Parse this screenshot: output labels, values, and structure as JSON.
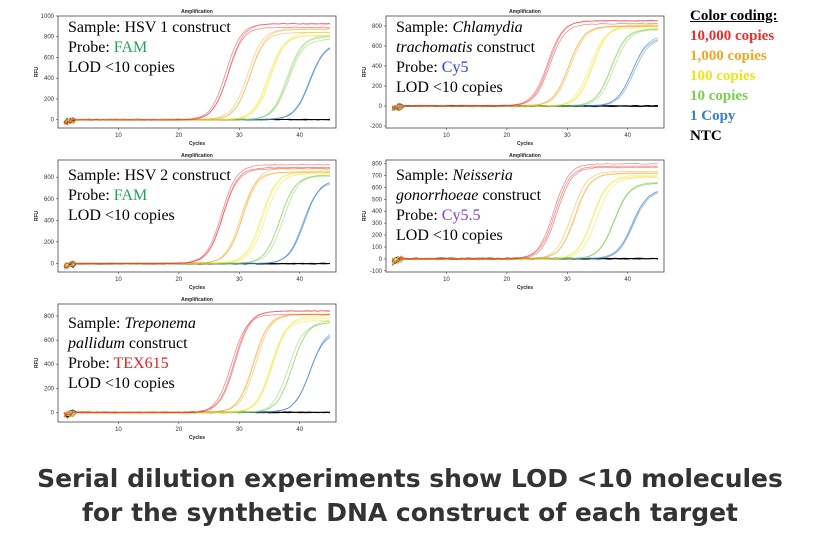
{
  "colors": {
    "c10000": "#ef2b2b",
    "c1000": "#f5a623",
    "c100": "#f2e21a",
    "c10": "#7ccf4a",
    "c1": "#3a7ec8",
    "ntc": "#000000"
  },
  "legend": {
    "title": "Color coding:",
    "items": [
      {
        "label": "10,000 copies",
        "color": "#ef2b2b"
      },
      {
        "label": "1,000 copies",
        "color": "#f5a623"
      },
      {
        "label": "100 copies",
        "color": "#f2e21a"
      },
      {
        "label": "10 copies",
        "color": "#7ccf4a"
      },
      {
        "label": "1 Copy",
        "color": "#3a7ec8"
      },
      {
        "label": "NTC",
        "color": "#000000"
      }
    ]
  },
  "caption": {
    "line1": "Serial dilution experiments show LOD <10 molecules",
    "line2": "for the synthetic DNA construct of each target"
  },
  "chart_data": [
    {
      "type": "line",
      "title": "Amplification",
      "xlabel": "Cycles",
      "ylabel": "RFU",
      "xlim": [
        0,
        46
      ],
      "ylim": [
        -80,
        1000
      ],
      "xticks": [
        "10",
        "20",
        "30",
        "40"
      ],
      "yticks": [
        "0",
        "200",
        "400",
        "600",
        "800",
        "1000"
      ],
      "annotation": {
        "sample_prefix": "Sample: ",
        "sample_name": "HSV 1",
        "sample_suffix": " construct",
        "probe_prefix": "Probe: ",
        "probe": "FAM",
        "probe_color": "#22a55a",
        "lod": "LOD <10 copies"
      },
      "series": [
        {
          "color": "#ef2b2b",
          "ct": 28,
          "plateau": 930
        },
        {
          "color": "#f5a623",
          "ct": 31.5,
          "plateau": 880
        },
        {
          "color": "#f2e21a",
          "ct": 35,
          "plateau": 860
        },
        {
          "color": "#7ccf4a",
          "ct": 38,
          "plateau": 820
        },
        {
          "color": "#3a7ec8",
          "ct": 41.5,
          "plateau": 760
        },
        {
          "color": "#000000",
          "ct": null,
          "plateau": 0
        }
      ]
    },
    {
      "type": "line",
      "title": "Amplification",
      "xlabel": "Cycles",
      "ylabel": "RFU",
      "xlim": [
        0,
        46
      ],
      "ylim": [
        -220,
        900
      ],
      "xticks": [
        "10",
        "20",
        "30",
        "40"
      ],
      "yticks": [
        "-200",
        "0",
        "200",
        "400",
        "600",
        "800"
      ],
      "annotation": {
        "sample_prefix": "Sample: ",
        "sample_name": "Chlamydia",
        "sample_name2": "trachomatis",
        "sample_suffix": " construct",
        "probe_prefix": "Probe: ",
        "probe": "Cy5",
        "probe_color": "#2b3fe0",
        "lod": "LOD <10 copies"
      },
      "series": [
        {
          "color": "#ef2b2b",
          "ct": 27,
          "plateau": 860
        },
        {
          "color": "#f5a623",
          "ct": 30.5,
          "plateau": 840
        },
        {
          "color": "#f2e21a",
          "ct": 34,
          "plateau": 820
        },
        {
          "color": "#7ccf4a",
          "ct": 37.5,
          "plateau": 780
        },
        {
          "color": "#3a7ec8",
          "ct": 41,
          "plateau": 720
        },
        {
          "color": "#000000",
          "ct": null,
          "plateau": 0
        }
      ]
    },
    {
      "type": "line",
      "title": "Amplification",
      "xlabel": "Cycles",
      "ylabel": "RFU",
      "xlim": [
        0,
        46
      ],
      "ylim": [
        -80,
        960
      ],
      "xticks": [
        "10",
        "20",
        "30",
        "40"
      ],
      "yticks": [
        "0",
        "200",
        "400",
        "600",
        "800"
      ],
      "annotation": {
        "sample_prefix": "Sample: ",
        "sample_name": "HSV 2",
        "sample_suffix": " construct",
        "probe_prefix": "Probe: ",
        "probe": "FAM",
        "probe_color": "#22a55a",
        "lod": "LOD <10 copies"
      },
      "series": [
        {
          "color": "#ef2b2b",
          "ct": 27,
          "plateau": 920
        },
        {
          "color": "#f5a623",
          "ct": 30.5,
          "plateau": 900
        },
        {
          "color": "#f2e21a",
          "ct": 34,
          "plateau": 880
        },
        {
          "color": "#7ccf4a",
          "ct": 37,
          "plateau": 850
        },
        {
          "color": "#3a7ec8",
          "ct": 40.5,
          "plateau": 800
        },
        {
          "color": "#000000",
          "ct": null,
          "plateau": 0
        }
      ]
    },
    {
      "type": "line",
      "title": "Amplification",
      "xlabel": "Cycles",
      "ylabel": "RFU",
      "xlim": [
        0,
        46
      ],
      "ylim": [
        -110,
        830
      ],
      "xticks": [
        "10",
        "20",
        "30",
        "40"
      ],
      "yticks": [
        "-100",
        "0",
        "100",
        "200",
        "300",
        "400",
        "500",
        "600",
        "700",
        "800"
      ],
      "annotation": {
        "sample_prefix": "Sample: ",
        "sample_name": "Neisseria",
        "sample_name2": "gonorrhoeae",
        "sample_suffix": " construct",
        "probe_prefix": "Probe: ",
        "probe": "Cy5.5",
        "probe_color": "#8a3fc7",
        "lod": "LOD <10 copies"
      },
      "series": [
        {
          "color": "#ef2b2b",
          "ct": 28,
          "plateau": 800
        },
        {
          "color": "#f5a623",
          "ct": 31,
          "plateau": 760
        },
        {
          "color": "#f2e21a",
          "ct": 34.5,
          "plateau": 700
        },
        {
          "color": "#7ccf4a",
          "ct": 37.5,
          "plateau": 660
        },
        {
          "color": "#3a7ec8",
          "ct": 41,
          "plateau": 590
        },
        {
          "color": "#000000",
          "ct": null,
          "plateau": 0
        }
      ]
    },
    {
      "type": "line",
      "title": "Amplification",
      "xlabel": "Cycles",
      "ylabel": "RFU",
      "xlim": [
        0,
        46
      ],
      "ylim": [
        -80,
        900
      ],
      "xticks": [
        "10",
        "20",
        "30",
        "40"
      ],
      "yticks": [
        "0",
        "200",
        "400",
        "600",
        "800"
      ],
      "annotation": {
        "sample_prefix": "Sample: ",
        "sample_name": "Treponema",
        "sample_name2": "pallidum",
        "sample_suffix": " construct",
        "probe_prefix": "Probe: ",
        "probe": "TEX615",
        "probe_color": "#e02020",
        "lod": "LOD <10 copies"
      },
      "series": [
        {
          "color": "#ef2b2b",
          "ct": 29,
          "plateau": 860
        },
        {
          "color": "#f5a623",
          "ct": 32.5,
          "plateau": 830
        },
        {
          "color": "#f2e21a",
          "ct": 35.5,
          "plateau": 810
        },
        {
          "color": "#7ccf4a",
          "ct": 38.5,
          "plateau": 770
        },
        {
          "color": "#3a7ec8",
          "ct": 42,
          "plateau": 700
        },
        {
          "color": "#000000",
          "ct": null,
          "plateau": 0
        }
      ]
    }
  ]
}
